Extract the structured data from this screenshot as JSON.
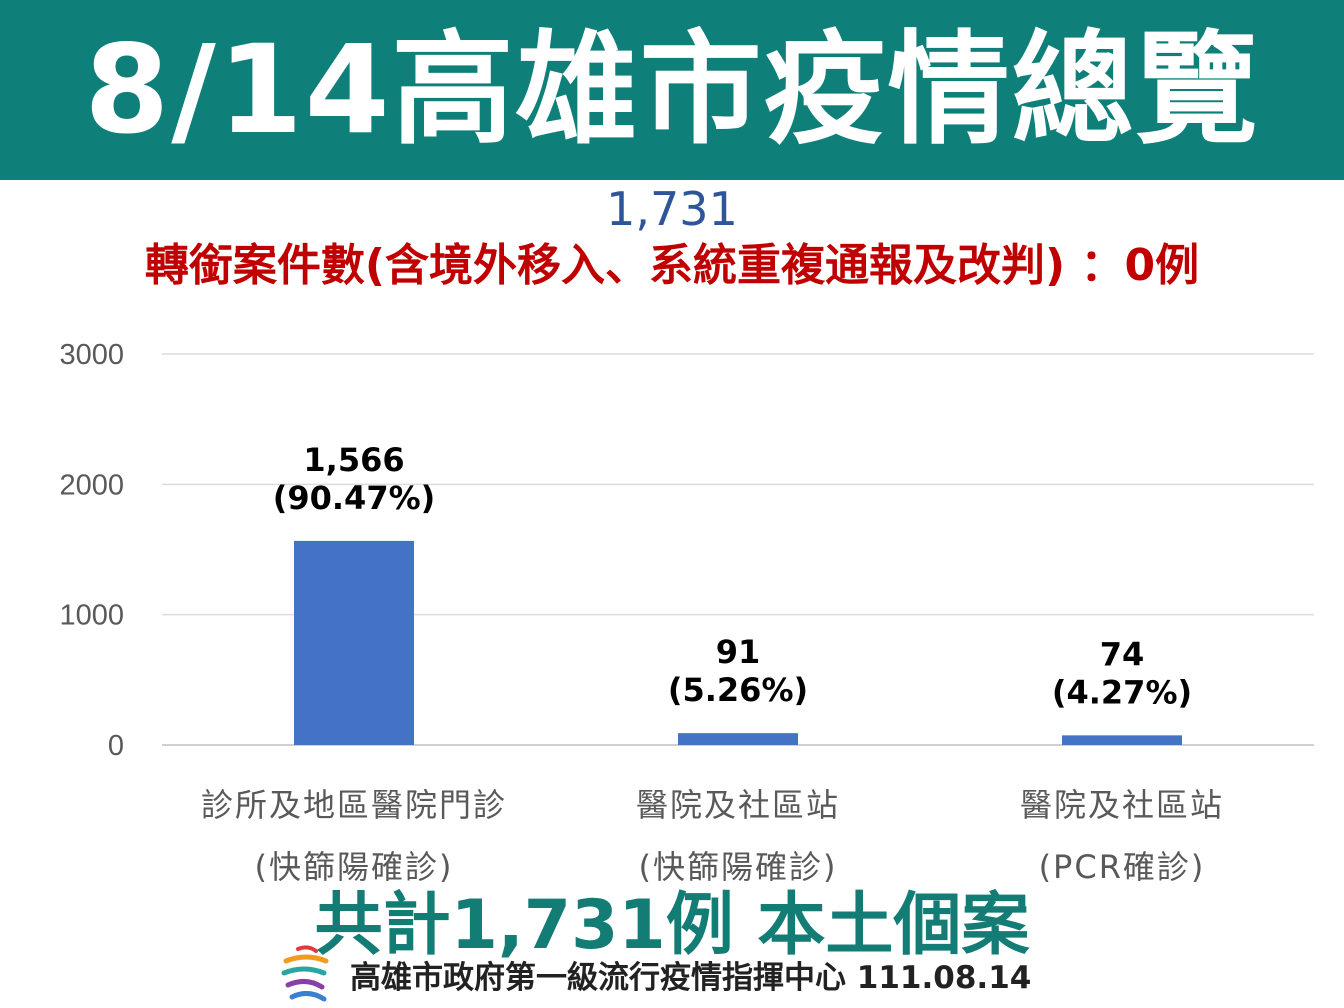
{
  "header": {
    "title": "8/14高雄市疫情總覽"
  },
  "summary": {
    "total": "1,731",
    "transfer_note": "轉銜案件數(含境外移入、系統重複通報及改判)   ：0例",
    "grand_total": "共計1,731例 本土個案"
  },
  "footer": {
    "org": "高雄市政府第一級流行疫情指揮中心 111.08.14"
  },
  "colors": {
    "bar": "#4472c4",
    "header": "#0f7f7a",
    "total": "#2e5597",
    "note": "#c00000",
    "grand_total": "#137c74"
  },
  "chart_data": {
    "type": "bar",
    "categories": [
      [
        "診所及地區醫院門診",
        "(快篩陽確診)"
      ],
      [
        "醫院及社區站",
        "(快篩陽確診)"
      ],
      [
        "醫院及社區站",
        "(PCR確診)"
      ]
    ],
    "values": [
      1566,
      91,
      74
    ],
    "data_labels": [
      [
        "1,566",
        "(90.47%)"
      ],
      [
        "91",
        "(5.26%)"
      ],
      [
        "74",
        "(4.27%)"
      ]
    ],
    "yticks": [
      "0",
      "1000",
      "2000",
      "3000"
    ],
    "ylim": [
      0,
      3000
    ],
    "grid": true
  }
}
